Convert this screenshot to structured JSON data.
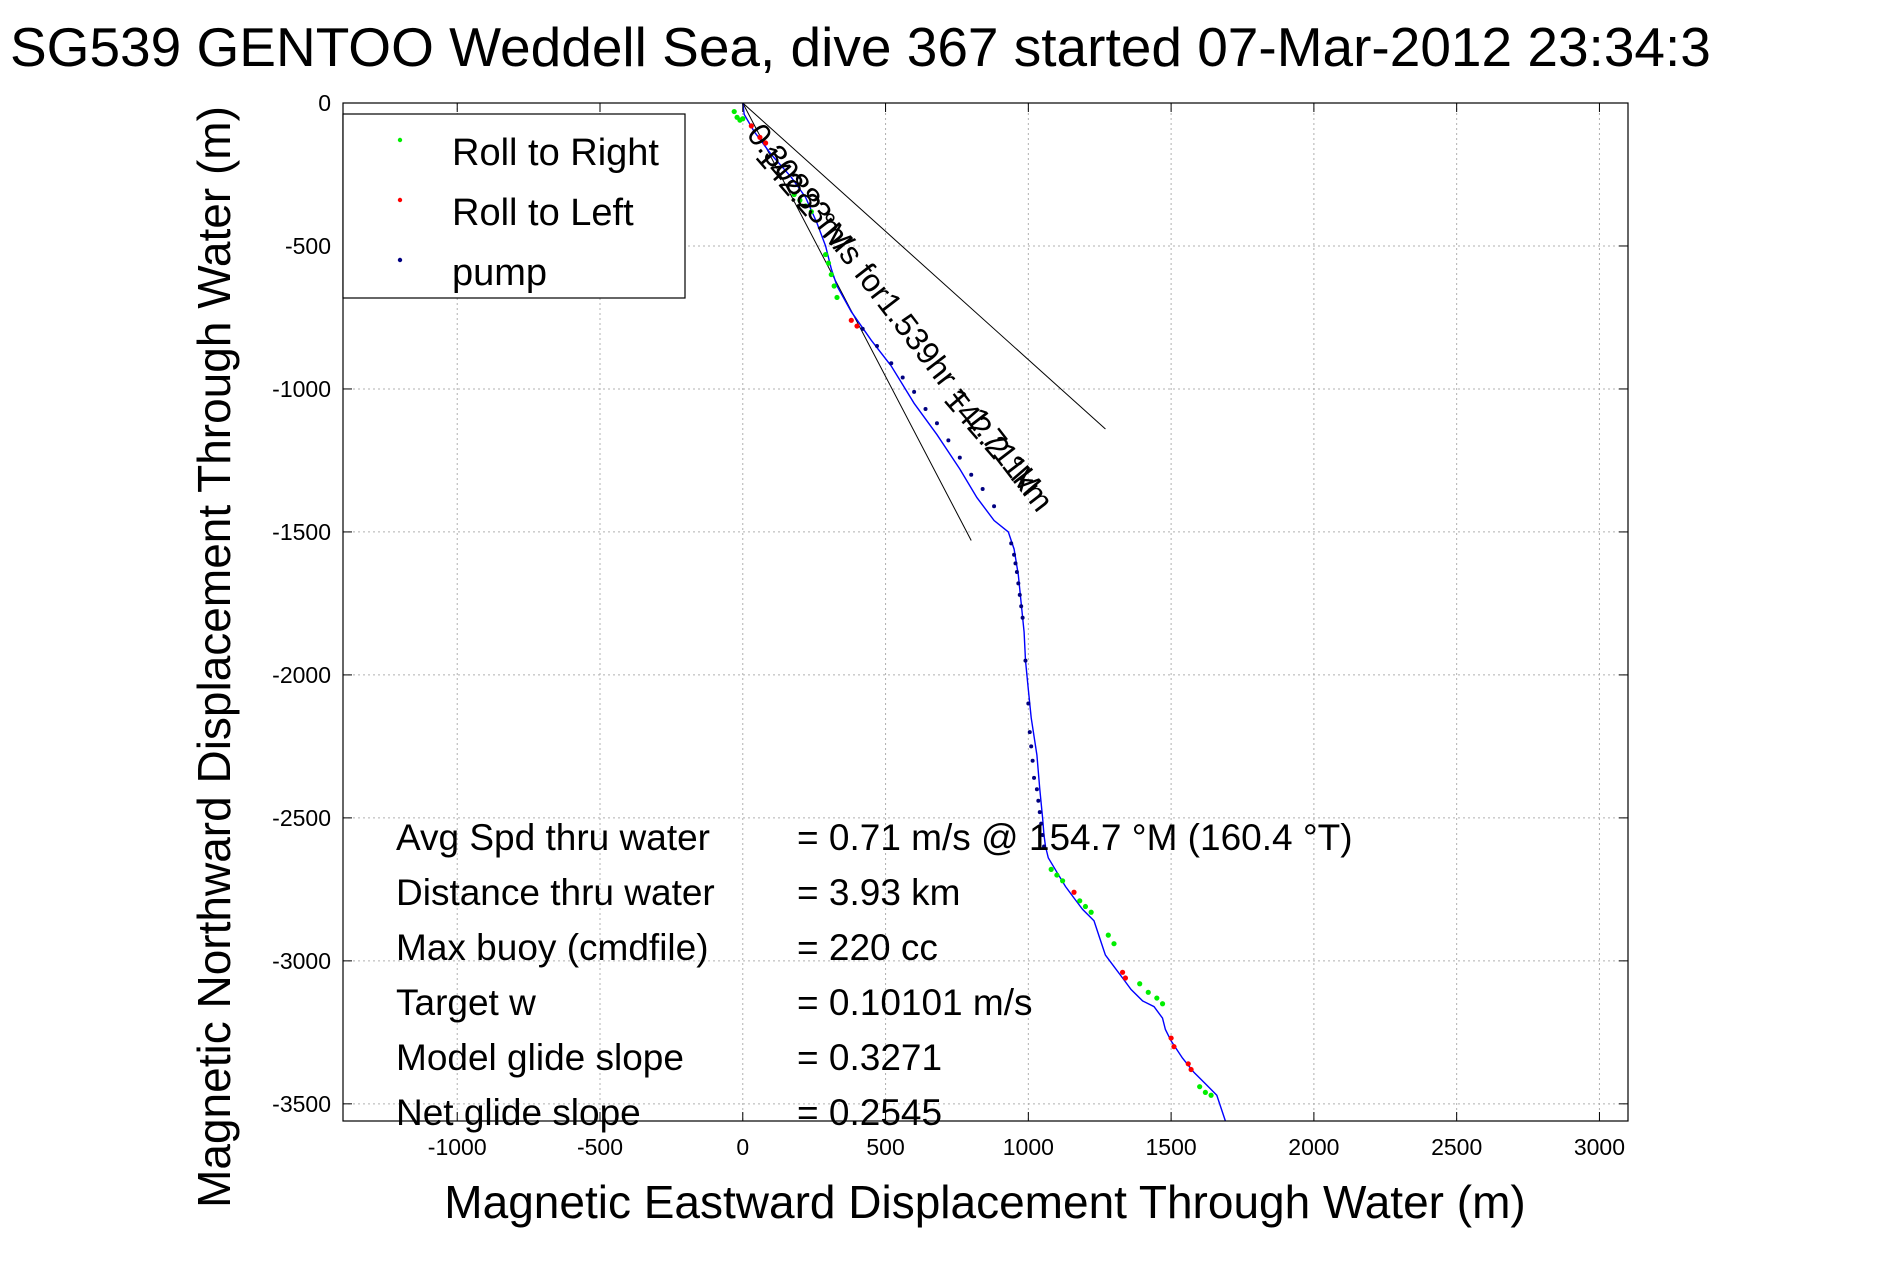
{
  "chart_data": {
    "type": "line",
    "title": "SG539 GENTOO Weddell Sea, dive 367 started 07-Mar-2012 23:34:3",
    "xlabel": "Magnetic Eastward Displacement Through Water (m)",
    "ylabel": "Magnetic Northward Displacement Through Water (m)",
    "xlim": [
      -1400,
      3100
    ],
    "ylim": [
      -3560,
      0
    ],
    "x_ticks": [
      -1000,
      -500,
      0,
      500,
      1000,
      1500,
      2000,
      2500,
      3000
    ],
    "y_ticks": [
      0,
      -500,
      -1000,
      -1500,
      -2000,
      -2500,
      -3000,
      -3500
    ],
    "grid": true,
    "legend_position": "top-left",
    "series": [
      {
        "name": "track",
        "color": "#0000ff",
        "x": [
          0,
          5,
          40,
          100,
          170,
          220,
          260,
          290,
          310,
          330,
          380,
          450,
          520,
          600,
          680,
          760,
          820,
          880,
          930,
          950,
          965,
          975,
          985,
          990,
          1000,
          1010,
          1030,
          1040,
          1050,
          1055,
          1060,
          1070,
          1100,
          1130,
          1160,
          1190,
          1230,
          1250,
          1270,
          1300,
          1330,
          1360,
          1400,
          1440,
          1470,
          1480,
          1500,
          1540,
          1580,
          1620,
          1660,
          1690
        ],
        "y": [
          0,
          -40,
          -100,
          -180,
          -260,
          -330,
          -420,
          -500,
          -580,
          -640,
          -730,
          -830,
          -920,
          -1050,
          -1160,
          -1280,
          -1380,
          -1460,
          -1500,
          -1560,
          -1650,
          -1750,
          -1850,
          -1950,
          -2050,
          -2150,
          -2280,
          -2400,
          -2500,
          -2560,
          -2600,
          -2640,
          -2690,
          -2740,
          -2780,
          -2820,
          -2860,
          -2920,
          -2980,
          -3020,
          -3060,
          -3100,
          -3140,
          -3160,
          -3200,
          -3240,
          -3280,
          -3340,
          -3390,
          -3430,
          -3470,
          -3560
        ]
      },
      {
        "name": "Roll to Right",
        "color": "#00ee00",
        "x": [
          -30,
          -20,
          -10,
          0,
          180,
          200,
          220,
          240,
          290,
          300,
          310,
          320,
          330,
          1080,
          1100,
          1120,
          1180,
          1200,
          1220,
          1280,
          1300,
          1390,
          1420,
          1450,
          1470,
          1600,
          1620,
          1640
        ],
        "y": [
          -30,
          -50,
          -60,
          -55,
          -320,
          -340,
          -360,
          -380,
          -530,
          -560,
          -600,
          -640,
          -680,
          -2680,
          -2700,
          -2720,
          -2790,
          -2810,
          -2830,
          -2910,
          -2940,
          -3080,
          -3110,
          -3130,
          -3150,
          -3440,
          -3460,
          -3470
        ]
      },
      {
        "name": "Roll to Left",
        "color": "#ff0000",
        "x": [
          30,
          60,
          80,
          380,
          400,
          1160,
          1330,
          1340,
          1500,
          1510,
          1560,
          1570
        ],
        "y": [
          -80,
          -120,
          -140,
          -760,
          -780,
          -2760,
          -3040,
          -3060,
          -3270,
          -3300,
          -3360,
          -3380
        ]
      },
      {
        "name": "pump",
        "color": "#000080",
        "x": [
          420,
          470,
          520,
          560,
          600,
          640,
          680,
          720,
          760,
          800,
          840,
          880,
          940,
          950,
          955,
          960,
          965,
          970,
          975,
          980,
          990,
          1000,
          1005,
          1010,
          1015,
          1020,
          1030,
          1035,
          1040,
          1045,
          1050,
          1055
        ],
        "y": [
          -790,
          -850,
          -910,
          -960,
          -1010,
          -1070,
          -1120,
          -1180,
          -1240,
          -1300,
          -1350,
          -1410,
          -1540,
          -1580,
          -1610,
          -1640,
          -1680,
          -1720,
          -1760,
          -1800,
          -1950,
          -2100,
          -2200,
          -2250,
          -2300,
          -2360,
          -2400,
          -2440,
          -2480,
          -2520,
          -2560,
          -2600
        ]
      }
    ],
    "reference_lines": [
      {
        "name": "leg-line-1",
        "x": [
          0,
          1270
        ],
        "y": [
          0,
          -1140
        ]
      },
      {
        "name": "leg-line-2",
        "x": [
          0,
          800
        ],
        "y": [
          0,
          -1530
        ]
      }
    ],
    "annotations": [
      {
        "name": "speed-annotation",
        "text": "0.30883m/s for1.539hr = 1.711km",
        "x": 10,
        "y": -110,
        "angle": 52.4
      },
      {
        "name": "heading-annotation-1",
        "text": "142.2 °M",
        "x": 40,
        "y": -190,
        "angle": 49.2
      },
      {
        "name": "heading-annotation-2",
        "text": "142.2 °M",
        "x": 700,
        "y": -1040,
        "angle": 49.2
      }
    ],
    "stats": [
      {
        "label": "Avg Spd thru water",
        "value": "=  0.71 m/s @ 154.7 °M (160.4 °T)"
      },
      {
        "label": "Distance thru water",
        "value": "=  3.93 km"
      },
      {
        "label": "Max buoy (cmdfile)",
        "value": "= 220 cc"
      },
      {
        "label": "Target w",
        "value": "= 0.10101 m/s"
      },
      {
        "label": "Model glide slope",
        "value": "= 0.3271"
      },
      {
        "label": "Net glide slope",
        "value": "= 0.2545"
      }
    ]
  }
}
